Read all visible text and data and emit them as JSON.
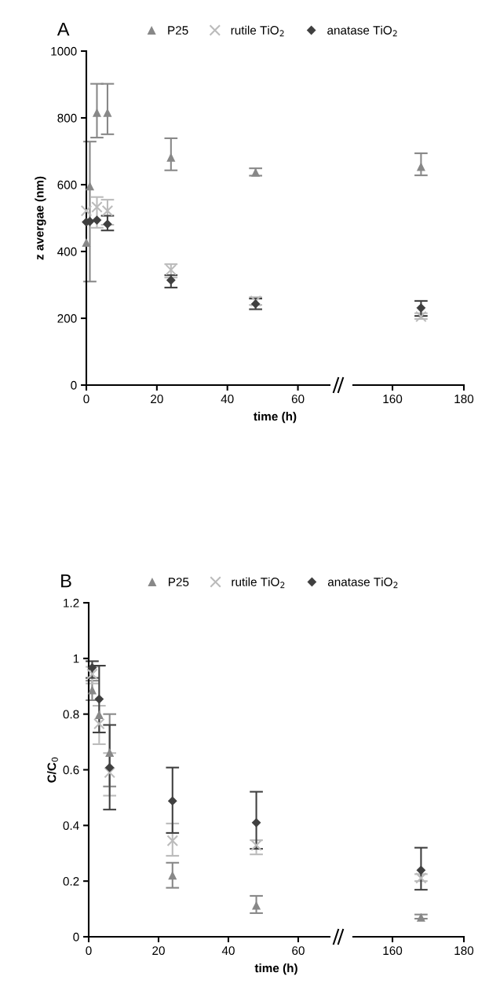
{
  "chart_data": [
    {
      "type": "scatter",
      "title": "A",
      "xlabel": "time (h)",
      "ylabel": "z avergae (nm)",
      "xlim": [
        0,
        69
      ],
      "xticks": [
        0,
        20,
        40,
        60
      ],
      "ylim": [
        0,
        1000
      ],
      "yticks": [
        0,
        200,
        400,
        600,
        800,
        1000
      ],
      "legend": "top",
      "series": [
        {
          "name": "P25",
          "color": "#888888",
          "marker": "triangle",
          "x": [
            0,
            1,
            3,
            6,
            24,
            48
          ],
          "values": [
            427,
            596,
            816,
            816,
            682,
            637
          ],
          "errors": [
            null,
            [
              310,
              729
            ],
            [
              741,
              902
            ],
            [
              751,
              902
            ],
            [
              643,
              739
            ],
            [
              627,
              649
            ]
          ]
        },
        {
          "name": "rutile TiO$_{2}$",
          "color": "#bbbbbb",
          "marker": "cross",
          "x": [
            0,
            3,
            6,
            24,
            48
          ],
          "values": [
            522,
            533,
            522,
            345,
            252
          ],
          "errors": [
            null,
            [
              471,
              563
            ],
            [
              480,
              555
            ],
            [
              322,
              362
            ],
            [
              240,
              263
            ]
          ]
        },
        {
          "name": "anatase TiO$_{2}$",
          "color": "#404040",
          "marker": "diamond",
          "x": [
            0,
            1,
            3,
            6,
            24,
            48
          ],
          "values": [
            488,
            490,
            494,
            482,
            314,
            243
          ],
          "errors": [
            null,
            null,
            null,
            [
              463,
              507
            ],
            [
              292,
              329
            ],
            [
              227,
              259
            ]
          ]
        }
      ]
    },
    {
      "type": "scatter",
      "xlim": [
        149,
        180
      ],
      "xticks": [
        160,
        180
      ],
      "ylim": [
        0,
        1000
      ],
      "tick_labels": "x",
      "series": [
        {
          "color": "#888888",
          "marker": "triangle",
          "x": [
            168
          ],
          "values": [
            654
          ],
          "errors": [
            [
              628,
              694
            ]
          ]
        },
        {
          "color": "#bbbbbb",
          "marker": "cross",
          "x": [
            168
          ],
          "values": [
            205
          ],
          "errors": [
            [
              198,
              215
            ]
          ]
        },
        {
          "color": "#404040",
          "marker": "diamond",
          "x": [
            168
          ],
          "values": [
            231
          ],
          "errors": [
            [
              207,
              252
            ]
          ]
        }
      ]
    },
    {
      "type": "scatter",
      "title": "B",
      "xlabel": "time (h)",
      "ylabel": "C/C$_{0}$",
      "xlim": [
        0,
        69
      ],
      "xticks": [
        0,
        20,
        40,
        60
      ],
      "ylim": [
        0,
        1.2
      ],
      "yticks": [
        0,
        0.2,
        0.4,
        0.6,
        0.8,
        1,
        1.2
      ],
      "legend": "top",
      "series": [
        {
          "name": "P25",
          "color": "#888888",
          "marker": "triangle",
          "x": [
            1,
            3,
            6,
            24,
            48
          ],
          "values": [
            0.887,
            0.798,
            0.662,
            0.221,
            0.113
          ],
          "errors": [
            [
              0.85,
              0.92
            ],
            null,
            [
              0.54,
              0.8
            ],
            [
              0.176,
              0.266
            ],
            [
              0.085,
              0.147
            ]
          ]
        },
        {
          "name": "rutile TiO$_{2}$",
          "color": "#bbbbbb",
          "marker": "cross",
          "x": [
            1,
            3,
            6,
            24,
            48
          ],
          "values": [
            0.944,
            0.765,
            0.59,
            0.345,
            0.329
          ],
          "errors": [
            [
              0.91,
              0.97
            ],
            [
              0.692,
              0.83
            ],
            [
              0.507,
              0.66
            ],
            [
              0.291,
              0.407
            ],
            [
              0.296,
              0.347
            ]
          ]
        },
        {
          "name": "anatase TiO$_{2}$",
          "color": "#404040",
          "marker": "diamond",
          "x": [
            1,
            3,
            6,
            24,
            48
          ],
          "values": [
            0.967,
            0.854,
            0.608,
            0.488,
            0.41
          ],
          "errors": [
            [
              0.93,
              0.99
            ],
            [
              0.734,
              0.974
            ],
            [
              0.457,
              0.761
            ],
            [
              0.373,
              0.608
            ],
            [
              0.316,
              0.521
            ]
          ]
        }
      ]
    },
    {
      "type": "scatter",
      "xlim": [
        149,
        180
      ],
      "xticks": [
        160,
        180
      ],
      "ylim": [
        0,
        1.2
      ],
      "tick_labels": "x",
      "series": [
        {
          "color": "#888888",
          "marker": "triangle",
          "x": [
            168
          ],
          "values": [
            0.07
          ],
          "errors": [
            [
              0.065,
              0.08
            ]
          ]
        },
        {
          "color": "#bbbbbb",
          "marker": "cross",
          "x": [
            168
          ],
          "values": [
            0.211
          ],
          "errors": [
            [
              0.2,
              0.225
            ]
          ]
        },
        {
          "color": "#404040",
          "marker": "diamond",
          "x": [
            168
          ],
          "values": [
            0.239
          ],
          "errors": [
            [
              0.169,
              0.32
            ]
          ]
        }
      ]
    }
  ]
}
